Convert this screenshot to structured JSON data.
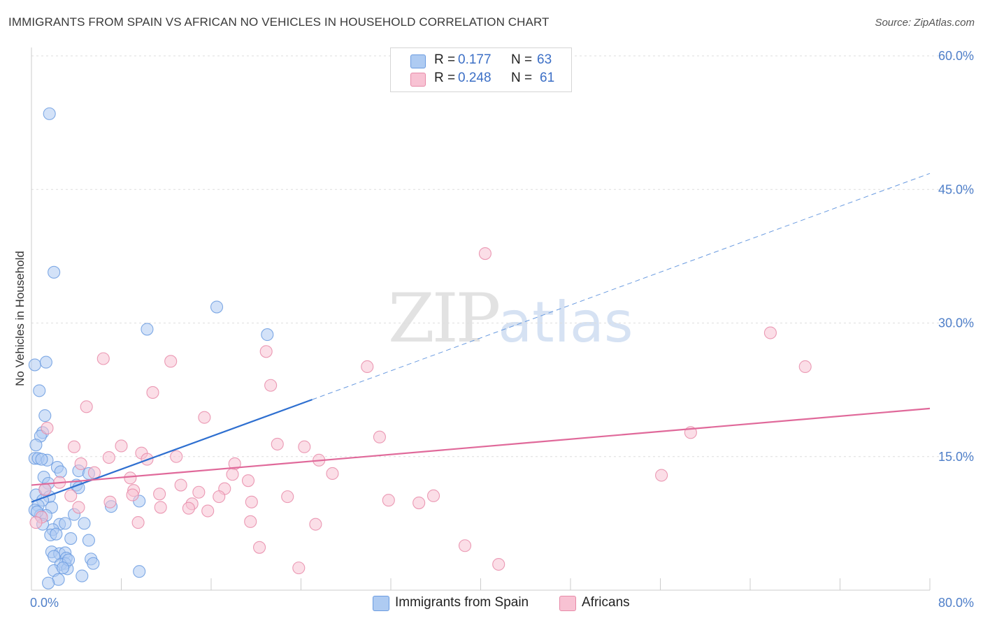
{
  "title": "IMMIGRANTS FROM SPAIN VS AFRICAN NO VEHICLES IN HOUSEHOLD CORRELATION CHART",
  "source": "Source: ZipAtlas.com",
  "watermark": {
    "zip": "ZIP",
    "atlas": "atlas"
  },
  "legend": {
    "r_label": "R =",
    "n_label": "N =",
    "rows": [
      {
        "r": "0.177",
        "n": "63",
        "color": "#aecbf2",
        "border": "#6a9be0"
      },
      {
        "r": "0.248",
        "n": "61",
        "color": "#f8c2d3",
        "border": "#e78aa8"
      }
    ]
  },
  "bottom_legend": [
    "Immigrants from Spain",
    "Africans"
  ],
  "chart_data": {
    "type": "scatter",
    "title": "IMMIGRANTS FROM SPAIN VS AFRICAN NO VEHICLES IN HOUSEHOLD CORRELATION CHART",
    "xlabel": "",
    "ylabel": "No Vehicles in Household",
    "xlim": [
      0,
      80
    ],
    "ylim": [
      0,
      60
    ],
    "x_tick_labels": [
      {
        "value": 0,
        "label": "0.0%"
      },
      {
        "value": 80,
        "label": "80.0%"
      }
    ],
    "y_tick_labels": [
      {
        "value": 15,
        "label": "15.0%"
      },
      {
        "value": 30,
        "label": "30.0%"
      },
      {
        "value": 45,
        "label": "45.0%"
      },
      {
        "value": 60,
        "label": "60.0%"
      }
    ],
    "grid": true,
    "legend_position": "top-center",
    "series": [
      {
        "name": "Immigrants from Spain",
        "color": "#6a9be0",
        "fill": "#aecbf2",
        "r": 0.177,
        "n": 63,
        "points": [
          [
            1.6,
            53.5
          ],
          [
            2.0,
            35.7
          ],
          [
            0.3,
            25.3
          ],
          [
            1.3,
            25.6
          ],
          [
            0.7,
            22.4
          ],
          [
            1.2,
            19.6
          ],
          [
            1.0,
            17.7
          ],
          [
            0.8,
            17.3
          ],
          [
            0.4,
            16.3
          ],
          [
            0.3,
            14.8
          ],
          [
            0.6,
            14.8
          ],
          [
            1.4,
            14.6
          ],
          [
            0.9,
            14.7
          ],
          [
            2.3,
            13.8
          ],
          [
            1.1,
            12.7
          ],
          [
            2.6,
            13.3
          ],
          [
            1.5,
            12.0
          ],
          [
            1.2,
            11.3
          ],
          [
            4.2,
            13.4
          ],
          [
            5.1,
            13.1
          ],
          [
            4.0,
            11.8
          ],
          [
            4.2,
            11.5
          ],
          [
            0.4,
            10.7
          ],
          [
            1.6,
            10.5
          ],
          [
            1.0,
            10.1
          ],
          [
            0.6,
            9.5
          ],
          [
            1.8,
            9.3
          ],
          [
            0.3,
            9.0
          ],
          [
            0.8,
            8.4
          ],
          [
            1.3,
            8.4
          ],
          [
            3.8,
            8.5
          ],
          [
            9.6,
            10.0
          ],
          [
            7.1,
            9.4
          ],
          [
            2.5,
            7.4
          ],
          [
            3.0,
            7.5
          ],
          [
            4.7,
            7.5
          ],
          [
            1.9,
            6.8
          ],
          [
            1.7,
            6.2
          ],
          [
            2.2,
            6.3
          ],
          [
            5.1,
            5.6
          ],
          [
            3.5,
            5.8
          ],
          [
            1.8,
            4.3
          ],
          [
            2.5,
            4.1
          ],
          [
            3.0,
            4.2
          ],
          [
            3.1,
            3.6
          ],
          [
            2.0,
            3.8
          ],
          [
            3.0,
            3.0
          ],
          [
            5.3,
            3.5
          ],
          [
            5.5,
            3.0
          ],
          [
            2.6,
            2.9
          ],
          [
            3.2,
            2.4
          ],
          [
            2.0,
            2.2
          ],
          [
            4.5,
            1.6
          ],
          [
            9.6,
            2.1
          ],
          [
            2.4,
            1.2
          ],
          [
            1.5,
            0.8
          ],
          [
            10.3,
            29.3
          ],
          [
            16.5,
            31.8
          ],
          [
            21.0,
            28.7
          ],
          [
            0.5,
            8.8
          ],
          [
            1.0,
            7.4
          ],
          [
            3.3,
            3.4
          ],
          [
            2.8,
            2.5
          ]
        ]
      },
      {
        "name": "Africans",
        "color": "#e78aa8",
        "fill": "#f8c2d3",
        "r": 0.248,
        "n": 61,
        "points": [
          [
            40.4,
            37.8
          ],
          [
            65.8,
            28.9
          ],
          [
            68.9,
            25.1
          ],
          [
            20.9,
            26.8
          ],
          [
            6.4,
            26.0
          ],
          [
            12.4,
            25.7
          ],
          [
            29.9,
            25.1
          ],
          [
            21.3,
            23.0
          ],
          [
            10.8,
            22.2
          ],
          [
            4.9,
            20.6
          ],
          [
            15.4,
            19.4
          ],
          [
            1.4,
            18.2
          ],
          [
            31.0,
            17.2
          ],
          [
            58.7,
            17.7
          ],
          [
            21.9,
            16.4
          ],
          [
            24.3,
            16.1
          ],
          [
            3.8,
            16.1
          ],
          [
            8.0,
            16.2
          ],
          [
            9.8,
            15.4
          ],
          [
            12.9,
            15.0
          ],
          [
            6.9,
            14.9
          ],
          [
            10.3,
            14.7
          ],
          [
            25.6,
            14.6
          ],
          [
            4.4,
            14.2
          ],
          [
            18.1,
            14.2
          ],
          [
            5.6,
            13.2
          ],
          [
            17.9,
            13.0
          ],
          [
            26.8,
            13.1
          ],
          [
            56.1,
            12.9
          ],
          [
            19.3,
            12.3
          ],
          [
            8.8,
            12.6
          ],
          [
            2.5,
            12.1
          ],
          [
            13.3,
            11.8
          ],
          [
            17.2,
            11.4
          ],
          [
            9.1,
            11.2
          ],
          [
            14.9,
            11.0
          ],
          [
            11.4,
            10.8
          ],
          [
            9.0,
            10.7
          ],
          [
            16.7,
            10.5
          ],
          [
            22.8,
            10.5
          ],
          [
            35.8,
            10.6
          ],
          [
            31.8,
            10.1
          ],
          [
            34.5,
            9.8
          ],
          [
            7.0,
            9.9
          ],
          [
            19.6,
            9.9
          ],
          [
            14.3,
            9.7
          ],
          [
            4.2,
            9.3
          ],
          [
            11.5,
            9.3
          ],
          [
            14.0,
            9.2
          ],
          [
            15.7,
            8.9
          ],
          [
            0.9,
            8.2
          ],
          [
            9.5,
            7.6
          ],
          [
            19.5,
            7.7
          ],
          [
            25.3,
            7.4
          ],
          [
            0.4,
            7.6
          ],
          [
            20.3,
            4.8
          ],
          [
            38.6,
            5.0
          ],
          [
            41.6,
            2.9
          ],
          [
            23.8,
            2.5
          ],
          [
            1.2,
            11.3
          ],
          [
            3.5,
            10.6
          ]
        ]
      }
    ],
    "trend_lines": [
      {
        "series": "Immigrants from Spain",
        "x": [
          0,
          25
        ],
        "y": [
          9.9,
          21.4
        ],
        "dashed_extension_to": [
          80,
          46.8
        ]
      },
      {
        "series": "Africans",
        "x": [
          0,
          80
        ],
        "y": [
          11.8,
          20.4
        ]
      }
    ]
  }
}
